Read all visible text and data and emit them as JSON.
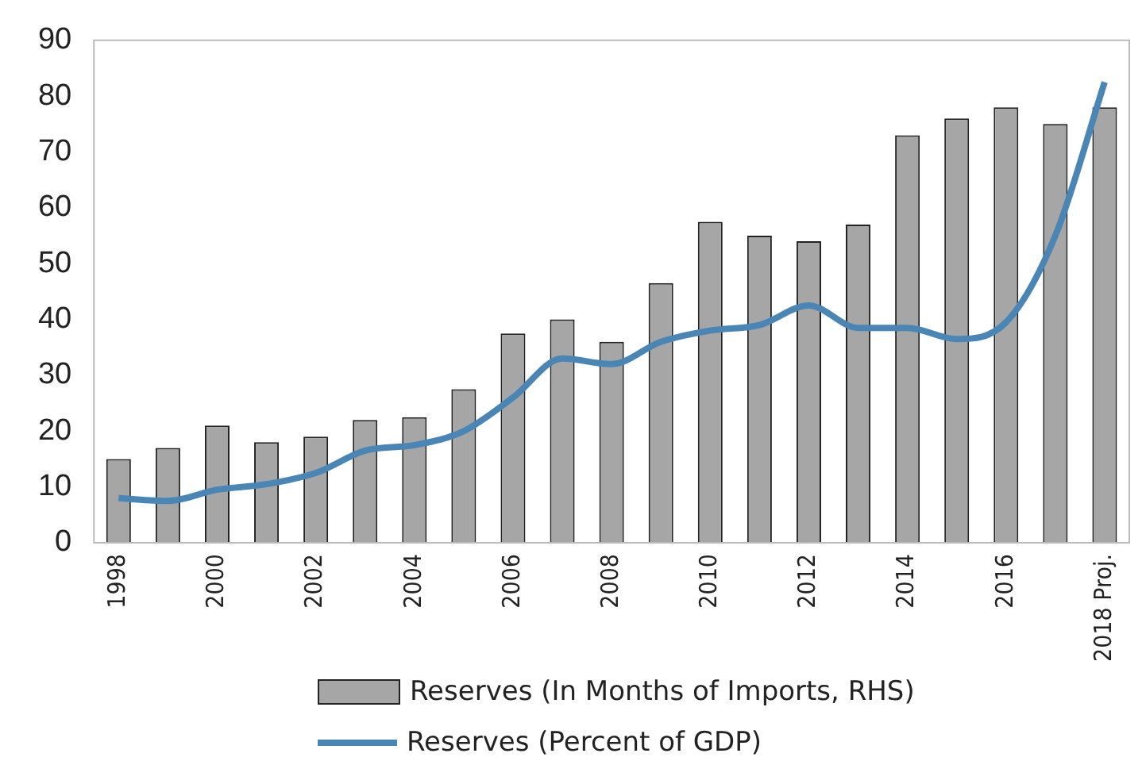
{
  "chart_data": {
    "type": "bar",
    "categories": [
      "1998",
      null,
      "2000",
      null,
      "2002",
      null,
      "2004",
      null,
      "2006",
      null,
      "2008",
      null,
      "2010",
      null,
      "2012",
      null,
      "2014",
      null,
      "2016",
      null,
      "2018 Proj."
    ],
    "series": [
      {
        "name": "Reserves (In Months of Imports, RHS)",
        "color": "#a6a6a6",
        "values": [
          15,
          17,
          21,
          18,
          19,
          22,
          22.5,
          27.5,
          37.5,
          40,
          36,
          46.5,
          57.5,
          55,
          54,
          57,
          73,
          76,
          78,
          75,
          78
        ]
      },
      {
        "name": "Reserves (Percent of GDP)",
        "type": "line",
        "color": "#4a86b5",
        "values": [
          8,
          7.5,
          9.5,
          10.5,
          12.5,
          16.5,
          17.5,
          20,
          26,
          33,
          32,
          36,
          38,
          39,
          42.5,
          38.5,
          38.5,
          36.5,
          39.5,
          55,
          82.5
        ]
      }
    ],
    "ylim": [
      0,
      90
    ],
    "yticks": [
      0,
      10,
      20,
      30,
      40,
      50,
      60,
      70,
      80,
      90
    ],
    "grid": false,
    "legend": "bottom",
    "marker": "none",
    "line_style": "solid"
  }
}
